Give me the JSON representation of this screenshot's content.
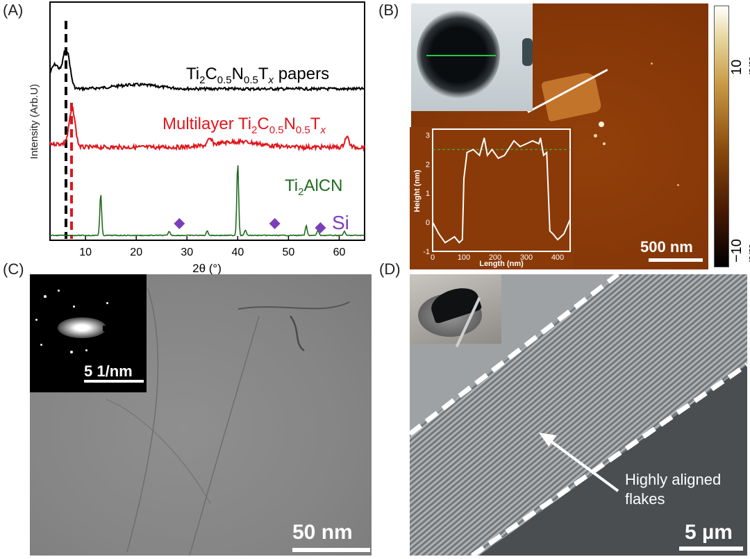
{
  "panels": {
    "a": {
      "letter": "(A)",
      "chart_data": {
        "type": "line",
        "xlabel": "2θ (°)",
        "ylabel": "Intensity (Arb.U)",
        "xlim": [
          3,
          65
        ],
        "xticks": [
          10,
          20,
          30,
          40,
          50,
          60
        ],
        "series": [
          {
            "name": "Ti2C0.5N0.5Tx papers",
            "color": "#000000",
            "peaks": [
              {
                "x": 6.3,
                "label": "dashed black marker"
              }
            ]
          },
          {
            "name": "Multilayer Ti2C0.5N0.5Tx",
            "color": "#e0161c",
            "peaks": [
              {
                "x": 7.4,
                "label": "dashed red marker"
              },
              {
                "x": 61.5
              }
            ]
          },
          {
            "name": "Ti2AlCN",
            "color": "#1e6b1e",
            "peaks": [
              {
                "x": 13
              },
              {
                "x": 26.5
              },
              {
                "x": 34
              },
              {
                "x": 40
              },
              {
                "x": 41.5
              },
              {
                "x": 53.5
              },
              {
                "x": 55.5
              }
            ]
          }
        ],
        "si_markers_x": [
          28.5,
          47.3,
          56.3
        ],
        "si_label": "Si"
      },
      "labels": {
        "papers_pre": "Ti",
        "papers_sub1": "2",
        "papers_mid": "C",
        "papers_sub2": "0.5",
        "papers_mid2": "N",
        "papers_sub3": "0.5",
        "papers_mid3": "T",
        "papers_sub4": "x",
        "papers_post": " papers",
        "multi_pre": "Multilayer Ti",
        "multi_sub1": "2",
        "multi_mid": "C",
        "multi_sub2": "0.5",
        "multi_mid2": "N",
        "multi_sub3": "0.5",
        "multi_mid3": "T",
        "multi_sub4": "x",
        "max_pre": "Ti",
        "max_sub": "2",
        "max_post": "AlCN",
        "si": "Si",
        "xlabel": "2θ (°)",
        "ylabel": "Intensity (Arb.U)",
        "ticks": [
          "10",
          "20",
          "30",
          "40",
          "50",
          "60"
        ]
      }
    },
    "b": {
      "letter": "(B)",
      "colorbar": {
        "top": "10 nm",
        "bottom": "−10 nm"
      },
      "scalebar": "500 nm",
      "inset": {
        "chart_data": {
          "type": "line",
          "xlabel": "Length (nm)",
          "ylabel": "Height (nm)",
          "xlim": [
            0,
            440
          ],
          "ylim": [
            -1,
            3.2
          ],
          "x": [
            0,
            20,
            40,
            55,
            70,
            85,
            95,
            100,
            110,
            130,
            150,
            165,
            175,
            190,
            210,
            230,
            260,
            280,
            300,
            320,
            340,
            345,
            355,
            365,
            375,
            385,
            400,
            420,
            440
          ],
          "y": [
            0,
            -0.4,
            -0.7,
            -0.6,
            -0.5,
            -0.7,
            -0.6,
            1.5,
            2.4,
            2.5,
            2.3,
            2.9,
            2.3,
            2.5,
            2.2,
            2.3,
            2.8,
            2.6,
            2.7,
            2.8,
            2.7,
            2.9,
            2.3,
            2.4,
            -0.3,
            -0.4,
            -0.6,
            -0.4,
            0.1
          ],
          "reference_line_y": 2.5,
          "xticks": [
            0,
            100,
            200,
            300,
            400
          ],
          "yticks": [
            -1,
            0,
            1,
            2,
            3
          ]
        },
        "xlabel": "Length (nm)",
        "ylabel": "Height (nm)",
        "xticks": [
          "0",
          "100",
          "200",
          "300",
          "400"
        ],
        "yticks": [
          "-1",
          "0",
          "1",
          "2",
          "3"
        ]
      }
    },
    "c": {
      "letter": "(C)",
      "inset_scalebar": "5 1/nm",
      "scalebar": "50 nm"
    },
    "d": {
      "letter": "(D)",
      "annotation": [
        "Highly aligned",
        "flakes"
      ],
      "scalebar": "5 µm"
    }
  },
  "colors": {
    "afm_bg": "#8a3a08",
    "papers": "#000000",
    "multilayer": "#e0161c",
    "max": "#1e6b1e",
    "si_marker": "#7a3fb8"
  }
}
